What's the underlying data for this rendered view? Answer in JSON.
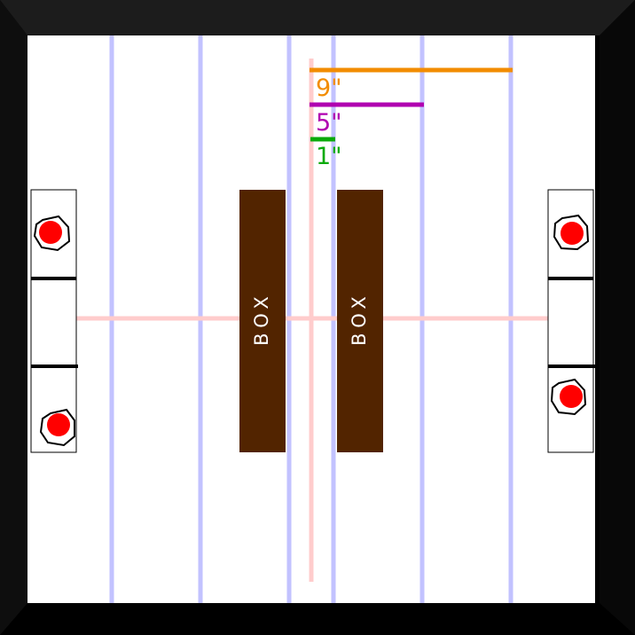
{
  "colors": {
    "frame_dark": "#000000",
    "frame_top": "#1c1c1c",
    "frame_side": "#0d0d0d",
    "board": "#ffffff",
    "grid_line": "#c2c2ff",
    "center_line": "#ffcccc",
    "box_fill": "#522400",
    "dot_red": "#ff0000",
    "rail_line": "#000000",
    "scale_9": "#f28c00",
    "scale_5": "#b000b0",
    "scale_1": "#0aaa0a"
  },
  "boxes": [
    {
      "label": "BOX"
    },
    {
      "label": "BOX"
    }
  ],
  "scales": [
    {
      "label": "9\"",
      "color_key": "scale_9"
    },
    {
      "label": "5\"",
      "color_key": "scale_5"
    },
    {
      "label": "1\"",
      "color_key": "scale_1"
    }
  ]
}
